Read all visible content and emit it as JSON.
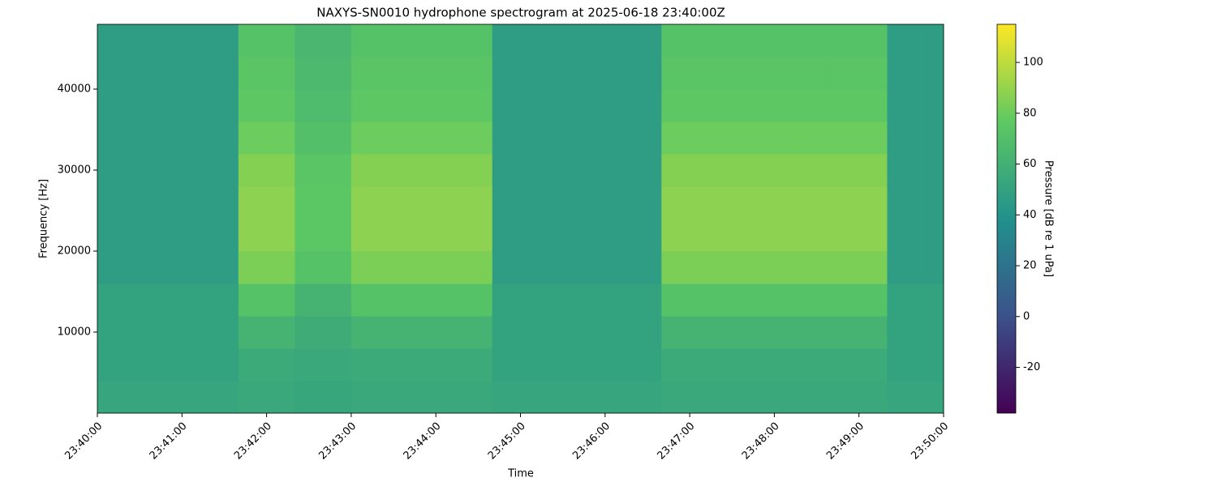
{
  "chart_data": {
    "type": "heatmap",
    "title": "NAXYS-SN0010 hydrophone spectrogram at 2025-06-18 23:40:00Z",
    "x_label": "Time",
    "y_label": "Frequency [Hz]",
    "colorbar_label": "Pressure [dB re 1 uPa]",
    "colormap": "viridis",
    "x": [
      "23:40:00",
      "23:40:20",
      "23:40:40",
      "23:41:00",
      "23:41:20",
      "23:41:40",
      "23:42:00",
      "23:42:20",
      "23:42:40",
      "23:43:00",
      "23:43:20",
      "23:43:40",
      "23:44:00",
      "23:44:20",
      "23:44:40",
      "23:45:00",
      "23:45:20",
      "23:45:40",
      "23:46:00",
      "23:46:20",
      "23:46:40",
      "23:47:00",
      "23:47:20",
      "23:47:40",
      "23:48:00",
      "23:48:20",
      "23:48:40",
      "23:49:00",
      "23:49:20",
      "23:49:40"
    ],
    "y": [
      0,
      4000,
      8000,
      12000,
      16000,
      20000,
      24000,
      28000,
      32000,
      36000,
      40000,
      44000
    ],
    "z": [
      [
        52,
        52,
        52,
        52,
        52,
        54,
        54,
        53,
        53,
        54,
        54,
        54,
        54,
        54,
        52,
        52,
        52,
        52,
        52,
        52,
        54,
        54,
        54,
        54,
        54,
        54,
        54,
        54,
        52,
        52
      ],
      [
        50,
        50,
        50,
        50,
        50,
        56,
        56,
        54,
        54,
        56,
        56,
        56,
        56,
        56,
        50,
        50,
        50,
        50,
        50,
        50,
        56,
        56,
        56,
        56,
        56,
        56,
        56,
        56,
        50,
        50
      ],
      [
        50,
        50,
        50,
        50,
        50,
        62,
        62,
        57,
        57,
        62,
        62,
        62,
        62,
        62,
        50,
        50,
        50,
        50,
        50,
        50,
        62,
        62,
        62,
        62,
        62,
        62,
        62,
        62,
        50,
        50
      ],
      [
        50,
        50,
        50,
        50,
        50,
        72,
        72,
        62,
        62,
        72,
        72,
        72,
        72,
        72,
        50,
        50,
        50,
        50,
        50,
        50,
        72,
        72,
        72,
        72,
        72,
        72,
        72,
        72,
        50,
        50
      ],
      [
        47,
        47,
        47,
        47,
        47,
        84,
        84,
        72,
        72,
        84,
        84,
        84,
        84,
        84,
        47,
        47,
        47,
        47,
        47,
        47,
        84,
        84,
        84,
        84,
        84,
        84,
        84,
        84,
        47,
        47
      ],
      [
        47,
        47,
        47,
        47,
        47,
        88,
        88,
        75,
        75,
        88,
        88,
        88,
        88,
        88,
        47,
        47,
        47,
        47,
        47,
        47,
        88,
        88,
        88,
        88,
        88,
        88,
        88,
        88,
        47,
        47
      ],
      [
        47,
        47,
        47,
        47,
        47,
        88,
        88,
        75,
        75,
        88,
        88,
        88,
        88,
        88,
        47,
        47,
        47,
        47,
        47,
        47,
        88,
        88,
        88,
        88,
        88,
        88,
        88,
        88,
        47,
        47
      ],
      [
        47,
        47,
        47,
        47,
        47,
        86,
        86,
        74,
        74,
        86,
        86,
        86,
        86,
        86,
        47,
        47,
        47,
        47,
        47,
        47,
        86,
        86,
        86,
        86,
        86,
        86,
        86,
        86,
        47,
        47
      ],
      [
        47,
        47,
        47,
        47,
        47,
        80,
        80,
        70,
        70,
        80,
        80,
        80,
        80,
        80,
        47,
        47,
        47,
        47,
        47,
        47,
        80,
        80,
        80,
        80,
        80,
        80,
        80,
        80,
        47,
        47
      ],
      [
        47,
        47,
        47,
        47,
        47,
        76,
        76,
        67,
        67,
        76,
        76,
        76,
        76,
        76,
        47,
        47,
        47,
        47,
        47,
        47,
        76,
        76,
        76,
        76,
        76,
        76,
        76,
        76,
        47,
        47
      ],
      [
        47,
        47,
        47,
        47,
        47,
        74,
        74,
        66,
        66,
        74,
        74,
        74,
        74,
        74,
        47,
        47,
        47,
        47,
        47,
        47,
        74,
        74,
        74,
        74,
        74,
        74,
        74,
        74,
        47,
        47
      ],
      [
        47,
        47,
        47,
        47,
        47,
        72,
        72,
        64,
        64,
        72,
        72,
        72,
        72,
        72,
        47,
        47,
        47,
        47,
        47,
        47,
        72,
        72,
        72,
        72,
        72,
        72,
        72,
        72,
        47,
        47
      ]
    ],
    "xlim": [
      "23:40:00",
      "23:50:00"
    ],
    "xticks": [
      "23:40:00",
      "23:41:00",
      "23:42:00",
      "23:43:00",
      "23:44:00",
      "23:45:00",
      "23:46:00",
      "23:47:00",
      "23:48:00",
      "23:49:00",
      "23:50:00"
    ],
    "ylim": [
      0,
      48000
    ],
    "yticks": [
      10000,
      20000,
      30000,
      40000
    ],
    "clim": [
      -38,
      115
    ],
    "cticks": [
      -20,
      0,
      20,
      40,
      60,
      80,
      100
    ]
  }
}
